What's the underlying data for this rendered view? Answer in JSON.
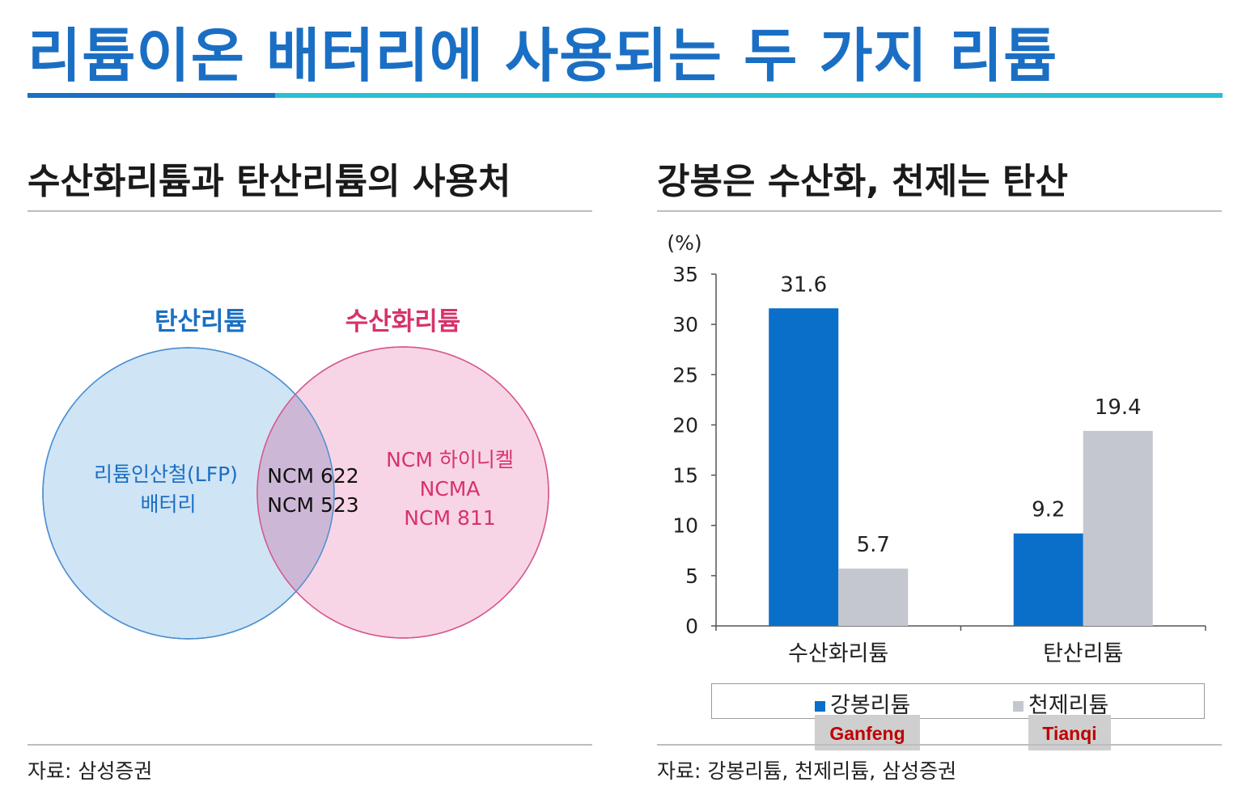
{
  "title": "리튬이온 배터리에 사용되는 두 가지 리튬",
  "left_panel": {
    "title": "수산화리튬과 탄산리튬의 사용처",
    "venn": {
      "left_label": "탄산리튬",
      "right_label": "수산화리튬",
      "left_only": [
        "리튬인산철(LFP)",
        "배터리"
      ],
      "overlap": [
        "NCM 622",
        "NCM 523"
      ],
      "right_only": [
        "NCM 하이니켈",
        "NCMA",
        "NCM 811"
      ],
      "colors": {
        "left": "#1a6fc4",
        "right": "#d6336c"
      }
    },
    "source": "자료: 삼성증권"
  },
  "right_panel": {
    "title": "강봉은 수산화, 천제는 탄산",
    "source": "자료: 강봉리튬, 천제리튬, 삼성증권",
    "annotations": [
      "Ganfeng",
      "Tianqi"
    ]
  },
  "chart_data": {
    "type": "bar",
    "title": "강봉은 수산화, 천제는 탄산",
    "ylabel": "(%)",
    "xlabel": "",
    "ylim": [
      0,
      35
    ],
    "yticks": [
      "0",
      "5",
      "10",
      "15",
      "20",
      "25",
      "30",
      "35"
    ],
    "categories": [
      "수산화리튬",
      "탄산리튬"
    ],
    "series": [
      {
        "name": "강봉리튬",
        "values": [
          31.6,
          9.2
        ],
        "labels": [
          "31.6",
          "9.2"
        ],
        "color": "#0a6fc9"
      },
      {
        "name": "천제리튬",
        "values": [
          5.7,
          19.4
        ],
        "labels": [
          "5.7",
          "19.4"
        ],
        "color": "#c4c6d0"
      }
    ],
    "legend": "bottom",
    "grid": false
  }
}
